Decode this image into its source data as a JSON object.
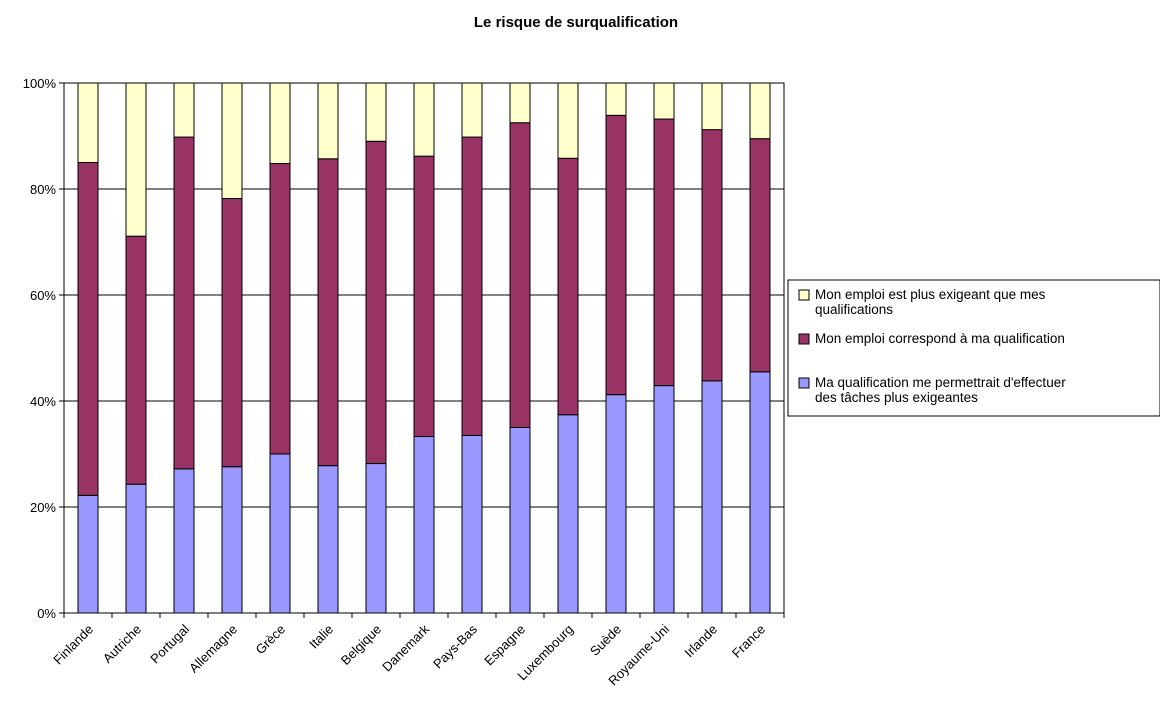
{
  "chart_data": {
    "type": "bar",
    "stacked": true,
    "title": "Le risque de surqualification",
    "xlabel": "",
    "ylabel": "",
    "ylim": [
      0,
      100
    ],
    "yticks": [
      "0%",
      "20%",
      "40%",
      "60%",
      "80%",
      "100%"
    ],
    "grid": true,
    "legend_position": "right",
    "categories": [
      "Finlande",
      "Autriche",
      "Portugal",
      "Allemagne",
      "Grèce",
      "Italie",
      "Belgique",
      "Danemark",
      "Pays-Bas",
      "Espagne",
      "Luxembourg",
      "Suède",
      "Royaume-Uni",
      "Irlande",
      "France"
    ],
    "series": [
      {
        "name": "Ma qualification me permettrait d'effectuer des tâches plus exigeantes",
        "color": "#9999ff",
        "values": [
          22.2,
          24.3,
          27.2,
          27.6,
          30.0,
          27.8,
          28.2,
          33.3,
          33.5,
          35.0,
          37.4,
          41.2,
          42.9,
          43.8,
          45.5
        ]
      },
      {
        "name": "Mon emploi correspond à ma qualification",
        "color": "#993366",
        "values": [
          62.8,
          46.8,
          62.6,
          50.6,
          54.8,
          57.9,
          60.8,
          52.9,
          56.3,
          57.5,
          48.4,
          52.7,
          50.3,
          47.4,
          44.0
        ]
      },
      {
        "name": "Mon emploi est plus exigeant que mes qualifications",
        "color": "#ffffcc",
        "values": [
          15.0,
          28.9,
          10.2,
          21.8,
          15.2,
          14.3,
          11.0,
          13.8,
          10.2,
          7.5,
          14.2,
          6.1,
          6.8,
          8.8,
          10.5
        ]
      }
    ],
    "legend_order": [
      2,
      1,
      0
    ]
  }
}
